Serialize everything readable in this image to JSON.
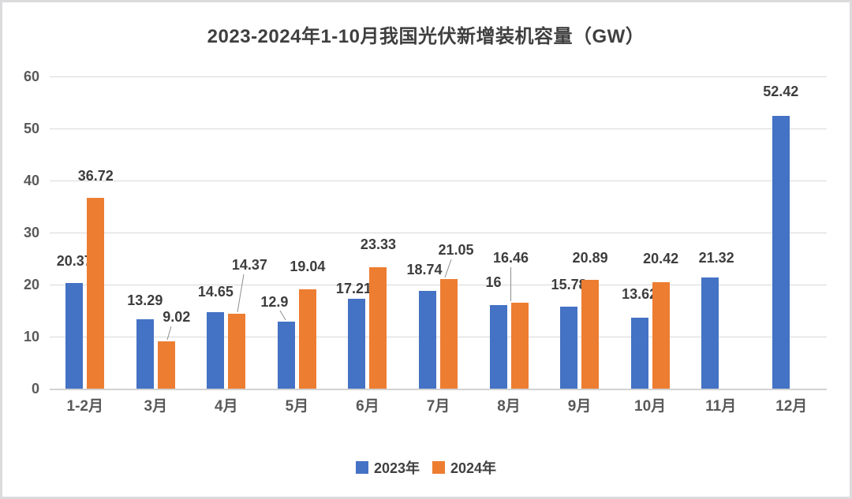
{
  "chart_data": {
    "type": "bar",
    "title": "2023-2024年1-10月我国光伏新增装机容量（GW）",
    "categories": [
      "1-2月",
      "3月",
      "4月",
      "5月",
      "6月",
      "7月",
      "8月",
      "9月",
      "10月",
      "11月",
      "12月"
    ],
    "series": [
      {
        "name": "2023年",
        "color": "#4472C4",
        "values": [
          20.37,
          13.29,
          14.65,
          12.9,
          17.21,
          18.74,
          16,
          15.78,
          13.62,
          21.32,
          52.42
        ]
      },
      {
        "name": "2024年",
        "color": "#ED7D31",
        "values": [
          36.72,
          9.02,
          14.37,
          19.04,
          23.33,
          21.05,
          16.46,
          20.89,
          20.42,
          null,
          null
        ]
      }
    ],
    "xlabel": "",
    "ylabel": "",
    "y_ticks": [
      0,
      10,
      20,
      30,
      40,
      50,
      60
    ],
    "ylim": [
      0,
      60
    ],
    "grid": true,
    "data_labels": true,
    "legend_position": "bottom",
    "colors": {
      "grid": "#d9d9d9",
      "axis_text": "#595959",
      "title_text": "#3f3f3f",
      "data_label_text": "#3d3d3d",
      "leader_line": "#8e8e8e",
      "background": "#ffffff",
      "border": "#dbdbdd"
    }
  }
}
